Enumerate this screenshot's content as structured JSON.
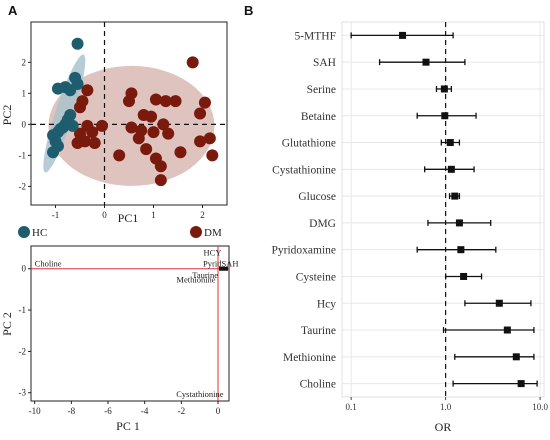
{
  "panels": {
    "a_label": "A",
    "b_label": "B"
  },
  "colors": {
    "hc": "#1d5d6e",
    "dm": "#7a1a0c",
    "hc_ellipse": "#aac3cc",
    "dm_ellipse": "#d9b8b3",
    "red_line": "#e0333a",
    "panel_bg": "#ffffff",
    "grid": "#e8e8e8",
    "forest_bg": "#ffffff"
  },
  "chart_data": [
    {
      "type": "scatter",
      "id": "pca_scores",
      "title": "",
      "xlabel": "PC1",
      "ylabel": "PC2",
      "xlim": [
        -1.5,
        2.5
      ],
      "ylim": [
        -2.6,
        3.3
      ],
      "xticks": [
        -1,
        0,
        1,
        2
      ],
      "yticks": [
        -2,
        -1,
        0,
        1,
        2
      ],
      "legend": [
        {
          "name": "HC",
          "color_key": "hc"
        },
        {
          "name": "DM",
          "color_key": "dm"
        }
      ],
      "series": [
        {
          "name": "HC",
          "points": [
            [
              -0.55,
              2.6
            ],
            [
              -0.6,
              1.5
            ],
            [
              -0.55,
              1.3
            ],
            [
              -0.8,
              1.2
            ],
            [
              -0.7,
              1.1
            ],
            [
              -0.95,
              1.15
            ],
            [
              -0.7,
              0.3
            ],
            [
              -0.75,
              0.15
            ],
            [
              -0.8,
              0.0
            ],
            [
              -0.85,
              -0.1
            ],
            [
              -0.9,
              -0.15
            ],
            [
              -0.75,
              0.05
            ],
            [
              -0.95,
              -0.25
            ],
            [
              -1.05,
              -0.35
            ],
            [
              -1.0,
              -0.55
            ],
            [
              -0.95,
              -0.7
            ],
            [
              -1.05,
              -0.9
            ],
            [
              -0.65,
              -0.05
            ]
          ]
        },
        {
          "name": "DM",
          "points": [
            [
              1.8,
              2.0
            ],
            [
              0.55,
              1.0
            ],
            [
              0.5,
              0.75
            ],
            [
              1.05,
              0.8
            ],
            [
              1.25,
              0.75
            ],
            [
              1.45,
              0.75
            ],
            [
              2.05,
              0.7
            ],
            [
              1.95,
              0.35
            ],
            [
              0.8,
              0.3
            ],
            [
              0.95,
              0.25
            ],
            [
              1.2,
              0.0
            ],
            [
              0.55,
              -0.1
            ],
            [
              0.75,
              -0.2
            ],
            [
              0.7,
              -0.45
            ],
            [
              1.0,
              -0.25
            ],
            [
              1.3,
              -0.3
            ],
            [
              2.15,
              -0.45
            ],
            [
              1.95,
              -0.55
            ],
            [
              1.55,
              -0.9
            ],
            [
              0.85,
              -0.8
            ],
            [
              1.05,
              -1.1
            ],
            [
              1.15,
              -1.35
            ],
            [
              2.2,
              -1.0
            ],
            [
              1.15,
              -1.8
            ],
            [
              0.3,
              -1.0
            ],
            [
              -0.2,
              -0.6
            ],
            [
              -0.35,
              1.1
            ],
            [
              -0.45,
              0.75
            ],
            [
              -0.5,
              0.55
            ],
            [
              -0.5,
              -0.3
            ],
            [
              -0.35,
              -0.05
            ],
            [
              -0.05,
              -0.05
            ],
            [
              -0.4,
              -0.55
            ],
            [
              -0.55,
              -0.6
            ],
            [
              -0.25,
              -0.25
            ]
          ]
        }
      ]
    },
    {
      "type": "scatter",
      "id": "pca_loadings",
      "title": "",
      "xlabel": "PC 1",
      "ylabel": "PC 2",
      "xlim": [
        -10.2,
        0.6
      ],
      "ylim": [
        -3.2,
        0.55
      ],
      "xticks": [
        -10,
        -8,
        -6,
        -4,
        -2,
        0
      ],
      "yticks": [
        -3,
        -2,
        -1,
        0
      ],
      "labels": [
        {
          "text": "Choline",
          "x": -10.0,
          "y": 0.05,
          "anchor": "start"
        },
        {
          "text": "HCY",
          "x": -0.3,
          "y": 0.32,
          "anchor": "middle"
        },
        {
          "text": "PyridSAH",
          "x": 0.15,
          "y": 0.06,
          "anchor": "middle"
        },
        {
          "text": "Taurine",
          "x": -0.7,
          "y": -0.22,
          "anchor": "middle"
        },
        {
          "text": "Methionine",
          "x": -1.2,
          "y": -0.33,
          "anchor": "middle"
        },
        {
          "text": "Cystathionine",
          "x": 0.3,
          "y": -3.1,
          "anchor": "end"
        }
      ]
    },
    {
      "type": "scatter",
      "id": "odds_ratio_forest",
      "title": "",
      "xlabel": "OR",
      "ylabel": "",
      "x_scale": "log",
      "xlim": [
        0.08,
        11
      ],
      "xticks": [
        0.1,
        1.0,
        10.0
      ],
      "xtick_labels": [
        "0.1",
        "1.0",
        "10.0"
      ],
      "reference_line": 1.0,
      "grid": true,
      "categories": [
        "5-MTHF",
        "SAH",
        "Serine",
        "Betaine",
        "Glutathione",
        "Cystathionine",
        "Glucose",
        "DMG",
        "Pyridoxamine",
        "Cysteine",
        "Hcy",
        "Taurine",
        "Methionine",
        "Choline"
      ],
      "or": [
        0.35,
        0.62,
        0.97,
        0.98,
        1.12,
        1.15,
        1.25,
        1.4,
        1.45,
        1.55,
        3.7,
        4.5,
        5.6,
        6.3
      ],
      "ci_low": [
        0.1,
        0.2,
        0.8,
        0.5,
        0.9,
        0.6,
        1.1,
        0.65,
        0.5,
        1.0,
        1.6,
        0.95,
        1.25,
        1.2
      ],
      "ci_high": [
        1.2,
        1.6,
        1.15,
        2.1,
        1.4,
        2.0,
        1.4,
        3.0,
        3.4,
        2.4,
        8.0,
        8.6,
        8.6,
        9.3
      ]
    }
  ]
}
